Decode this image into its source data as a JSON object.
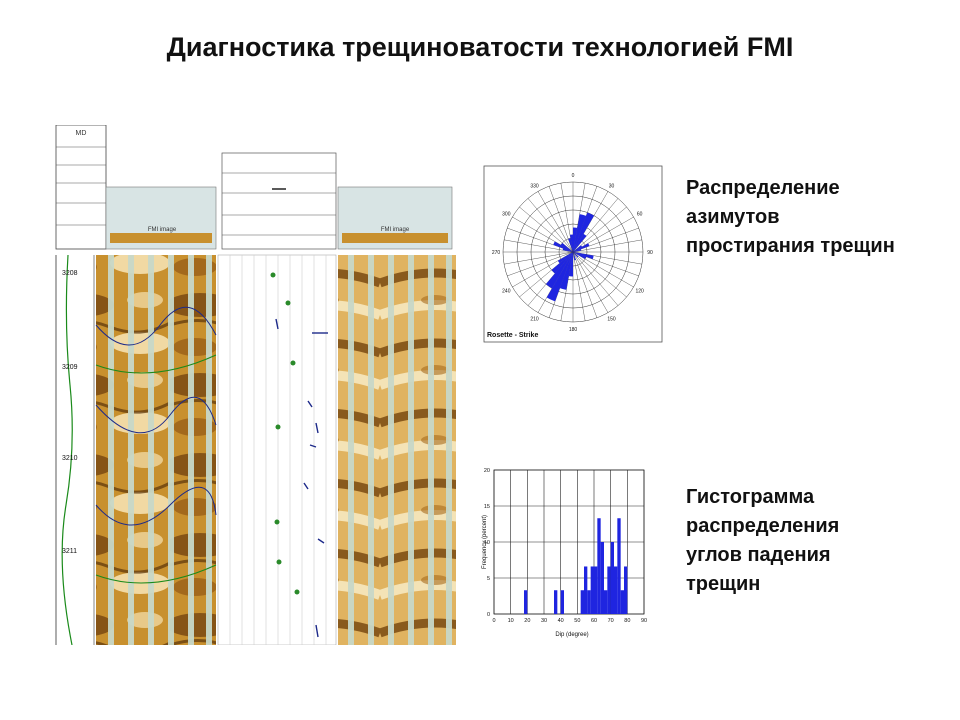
{
  "title": "Диагностика трещиноватости технологией FMI",
  "captions": {
    "rose": [
      "Распределение",
      "азимутов",
      "простирания трещин"
    ],
    "histogram": [
      "Гистограмма",
      "распределения",
      "углов падения",
      "трещин"
    ]
  },
  "log": {
    "md_header": "MD",
    "depth_ticks": [
      "3208",
      "3209",
      "3210",
      "3211"
    ],
    "track_label": "FMI image",
    "colors": {
      "dark": "#7a4a12",
      "mid": "#c8902e",
      "light": "#f5e2b0"
    }
  },
  "chart_data": [
    {
      "type": "rose",
      "title": "Rosette - Strike",
      "angle_ticks": [
        "0",
        "30",
        "60",
        "90",
        "120",
        "150",
        "180",
        "210",
        "240",
        "270",
        "300",
        "330"
      ],
      "bin_width_deg": 10,
      "petals": [
        {
          "azimuth": 5,
          "value": 0.35
        },
        {
          "azimuth": 15,
          "value": 0.55
        },
        {
          "azimuth": 25,
          "value": 0.6
        },
        {
          "azimuth": 35,
          "value": 0.3
        },
        {
          "azimuth": 55,
          "value": 0.15
        },
        {
          "azimuth": 65,
          "value": 0.25
        },
        {
          "azimuth": 75,
          "value": 0.12
        },
        {
          "azimuth": 105,
          "value": 0.3
        },
        {
          "azimuth": 115,
          "value": 0.2
        },
        {
          "azimuth": 135,
          "value": 0.1
        },
        {
          "azimuth": 165,
          "value": 0.12
        },
        {
          "azimuth": 185,
          "value": 0.35
        },
        {
          "azimuth": 195,
          "value": 0.55
        },
        {
          "azimuth": 205,
          "value": 0.75
        },
        {
          "azimuth": 215,
          "value": 0.6
        },
        {
          "azimuth": 225,
          "value": 0.4
        },
        {
          "azimuth": 235,
          "value": 0.25
        },
        {
          "azimuth": 285,
          "value": 0.15
        },
        {
          "azimuth": 295,
          "value": 0.3
        },
        {
          "azimuth": 305,
          "value": 0.2
        },
        {
          "azimuth": 345,
          "value": 0.2
        },
        {
          "azimuth": 355,
          "value": 0.25
        }
      ],
      "color": "#1f25e0"
    },
    {
      "type": "bar",
      "xlabel": "Dip (degree)",
      "ylabel": "Frequency (percent)",
      "xlim": [
        0,
        90
      ],
      "ylim": [
        0,
        20
      ],
      "x_ticks": [
        "0",
        "10",
        "20",
        "30",
        "40",
        "50",
        "60",
        "70",
        "80",
        "90"
      ],
      "y_ticks": [
        "0",
        "5",
        "10",
        "15",
        "20"
      ],
      "bin_width": 2,
      "bins": [
        {
          "x": 18,
          "value": 3.3
        },
        {
          "x": 36,
          "value": 3.3
        },
        {
          "x": 40,
          "value": 3.3
        },
        {
          "x": 52,
          "value": 3.3
        },
        {
          "x": 54,
          "value": 6.6
        },
        {
          "x": 56,
          "value": 3.3
        },
        {
          "x": 58,
          "value": 6.6
        },
        {
          "x": 60,
          "value": 6.6
        },
        {
          "x": 62,
          "value": 13.3
        },
        {
          "x": 64,
          "value": 10
        },
        {
          "x": 66,
          "value": 3.3
        },
        {
          "x": 68,
          "value": 6.6
        },
        {
          "x": 70,
          "value": 10
        },
        {
          "x": 72,
          "value": 6.6
        },
        {
          "x": 74,
          "value": 13.3
        },
        {
          "x": 76,
          "value": 3.3
        },
        {
          "x": 78,
          "value": 6.6
        }
      ],
      "color": "#1f25e0"
    }
  ]
}
